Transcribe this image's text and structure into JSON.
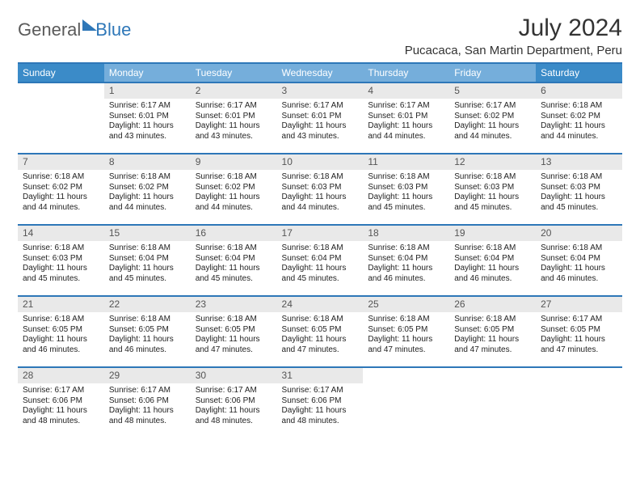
{
  "logo": {
    "text1": "General",
    "text2": "Blue"
  },
  "title": "July 2024",
  "location": "Pucacaca, San Martin Department, Peru",
  "colors": {
    "header_border": "#2e77b8",
    "sun_sat_bg": "#3b8bc8",
    "weekday_bg": "#75aedb",
    "header_fg": "#ffffff",
    "daynum_bg": "#e9e9e9",
    "text": "#222222"
  },
  "day_headers": [
    "Sunday",
    "Monday",
    "Tuesday",
    "Wednesday",
    "Thursday",
    "Friday",
    "Saturday"
  ],
  "weeks": [
    [
      {
        "n": "",
        "sr": "",
        "ss": "",
        "dl": ""
      },
      {
        "n": "1",
        "sr": "6:17 AM",
        "ss": "6:01 PM",
        "dl": "Daylight: 11 hours and 43 minutes."
      },
      {
        "n": "2",
        "sr": "6:17 AM",
        "ss": "6:01 PM",
        "dl": "Daylight: 11 hours and 43 minutes."
      },
      {
        "n": "3",
        "sr": "6:17 AM",
        "ss": "6:01 PM",
        "dl": "Daylight: 11 hours and 43 minutes."
      },
      {
        "n": "4",
        "sr": "6:17 AM",
        "ss": "6:01 PM",
        "dl": "Daylight: 11 hours and 44 minutes."
      },
      {
        "n": "5",
        "sr": "6:17 AM",
        "ss": "6:02 PM",
        "dl": "Daylight: 11 hours and 44 minutes."
      },
      {
        "n": "6",
        "sr": "6:18 AM",
        "ss": "6:02 PM",
        "dl": "Daylight: 11 hours and 44 minutes."
      }
    ],
    [
      {
        "n": "7",
        "sr": "6:18 AM",
        "ss": "6:02 PM",
        "dl": "Daylight: 11 hours and 44 minutes."
      },
      {
        "n": "8",
        "sr": "6:18 AM",
        "ss": "6:02 PM",
        "dl": "Daylight: 11 hours and 44 minutes."
      },
      {
        "n": "9",
        "sr": "6:18 AM",
        "ss": "6:02 PM",
        "dl": "Daylight: 11 hours and 44 minutes."
      },
      {
        "n": "10",
        "sr": "6:18 AM",
        "ss": "6:03 PM",
        "dl": "Daylight: 11 hours and 44 minutes."
      },
      {
        "n": "11",
        "sr": "6:18 AM",
        "ss": "6:03 PM",
        "dl": "Daylight: 11 hours and 45 minutes."
      },
      {
        "n": "12",
        "sr": "6:18 AM",
        "ss": "6:03 PM",
        "dl": "Daylight: 11 hours and 45 minutes."
      },
      {
        "n": "13",
        "sr": "6:18 AM",
        "ss": "6:03 PM",
        "dl": "Daylight: 11 hours and 45 minutes."
      }
    ],
    [
      {
        "n": "14",
        "sr": "6:18 AM",
        "ss": "6:03 PM",
        "dl": "Daylight: 11 hours and 45 minutes."
      },
      {
        "n": "15",
        "sr": "6:18 AM",
        "ss": "6:04 PM",
        "dl": "Daylight: 11 hours and 45 minutes."
      },
      {
        "n": "16",
        "sr": "6:18 AM",
        "ss": "6:04 PM",
        "dl": "Daylight: 11 hours and 45 minutes."
      },
      {
        "n": "17",
        "sr": "6:18 AM",
        "ss": "6:04 PM",
        "dl": "Daylight: 11 hours and 45 minutes."
      },
      {
        "n": "18",
        "sr": "6:18 AM",
        "ss": "6:04 PM",
        "dl": "Daylight: 11 hours and 46 minutes."
      },
      {
        "n": "19",
        "sr": "6:18 AM",
        "ss": "6:04 PM",
        "dl": "Daylight: 11 hours and 46 minutes."
      },
      {
        "n": "20",
        "sr": "6:18 AM",
        "ss": "6:04 PM",
        "dl": "Daylight: 11 hours and 46 minutes."
      }
    ],
    [
      {
        "n": "21",
        "sr": "6:18 AM",
        "ss": "6:05 PM",
        "dl": "Daylight: 11 hours and 46 minutes."
      },
      {
        "n": "22",
        "sr": "6:18 AM",
        "ss": "6:05 PM",
        "dl": "Daylight: 11 hours and 46 minutes."
      },
      {
        "n": "23",
        "sr": "6:18 AM",
        "ss": "6:05 PM",
        "dl": "Daylight: 11 hours and 47 minutes."
      },
      {
        "n": "24",
        "sr": "6:18 AM",
        "ss": "6:05 PM",
        "dl": "Daylight: 11 hours and 47 minutes."
      },
      {
        "n": "25",
        "sr": "6:18 AM",
        "ss": "6:05 PM",
        "dl": "Daylight: 11 hours and 47 minutes."
      },
      {
        "n": "26",
        "sr": "6:18 AM",
        "ss": "6:05 PM",
        "dl": "Daylight: 11 hours and 47 minutes."
      },
      {
        "n": "27",
        "sr": "6:17 AM",
        "ss": "6:05 PM",
        "dl": "Daylight: 11 hours and 47 minutes."
      }
    ],
    [
      {
        "n": "28",
        "sr": "6:17 AM",
        "ss": "6:06 PM",
        "dl": "Daylight: 11 hours and 48 minutes."
      },
      {
        "n": "29",
        "sr": "6:17 AM",
        "ss": "6:06 PM",
        "dl": "Daylight: 11 hours and 48 minutes."
      },
      {
        "n": "30",
        "sr": "6:17 AM",
        "ss": "6:06 PM",
        "dl": "Daylight: 11 hours and 48 minutes."
      },
      {
        "n": "31",
        "sr": "6:17 AM",
        "ss": "6:06 PM",
        "dl": "Daylight: 11 hours and 48 minutes."
      },
      {
        "n": "",
        "sr": "",
        "ss": "",
        "dl": ""
      },
      {
        "n": "",
        "sr": "",
        "ss": "",
        "dl": ""
      },
      {
        "n": "",
        "sr": "",
        "ss": "",
        "dl": ""
      }
    ]
  ],
  "labels": {
    "sunrise": "Sunrise: ",
    "sunset": "Sunset: "
  }
}
